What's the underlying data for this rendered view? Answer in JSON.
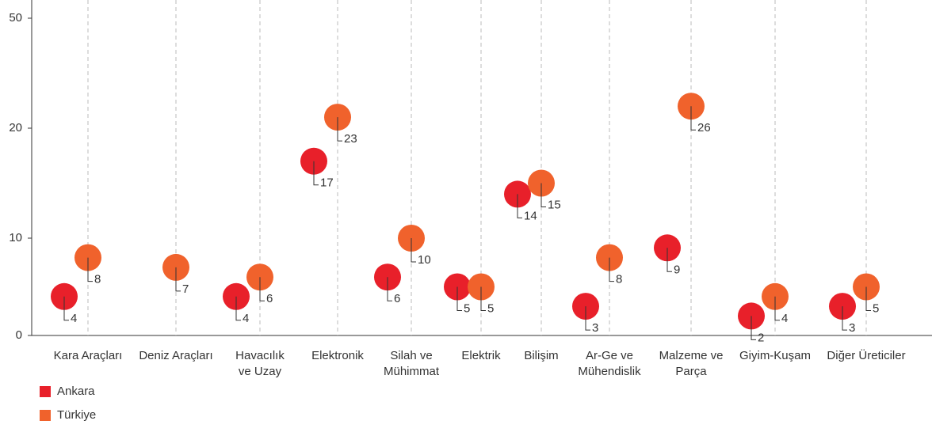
{
  "chart_data": {
    "type": "dot",
    "categories": [
      "Kara Araçları",
      "Deniz Araçları",
      "Havacılık\nve Uzay",
      "Elektronik",
      "Silah ve\nMühimmat",
      "Elektrik",
      "Bilişim",
      "Ar-Ge ve\nMühendislik",
      "Malzeme ve\nParça",
      "Giyim-Kuşam",
      "Diğer Üreticiler"
    ],
    "series": [
      {
        "name": "Ankara",
        "color": "#e8202a",
        "values": [
          4,
          null,
          4,
          17,
          6,
          5,
          14,
          3,
          9,
          2,
          3
        ]
      },
      {
        "name": "Türkiye",
        "color": "#f0622c",
        "values": [
          8,
          7,
          6,
          23,
          10,
          5,
          15,
          8,
          26,
          4,
          5
        ]
      }
    ],
    "ylim": [
      0,
      50
    ],
    "yticks": [
      0,
      10,
      20,
      50
    ],
    "legend": "bottom-left"
  }
}
